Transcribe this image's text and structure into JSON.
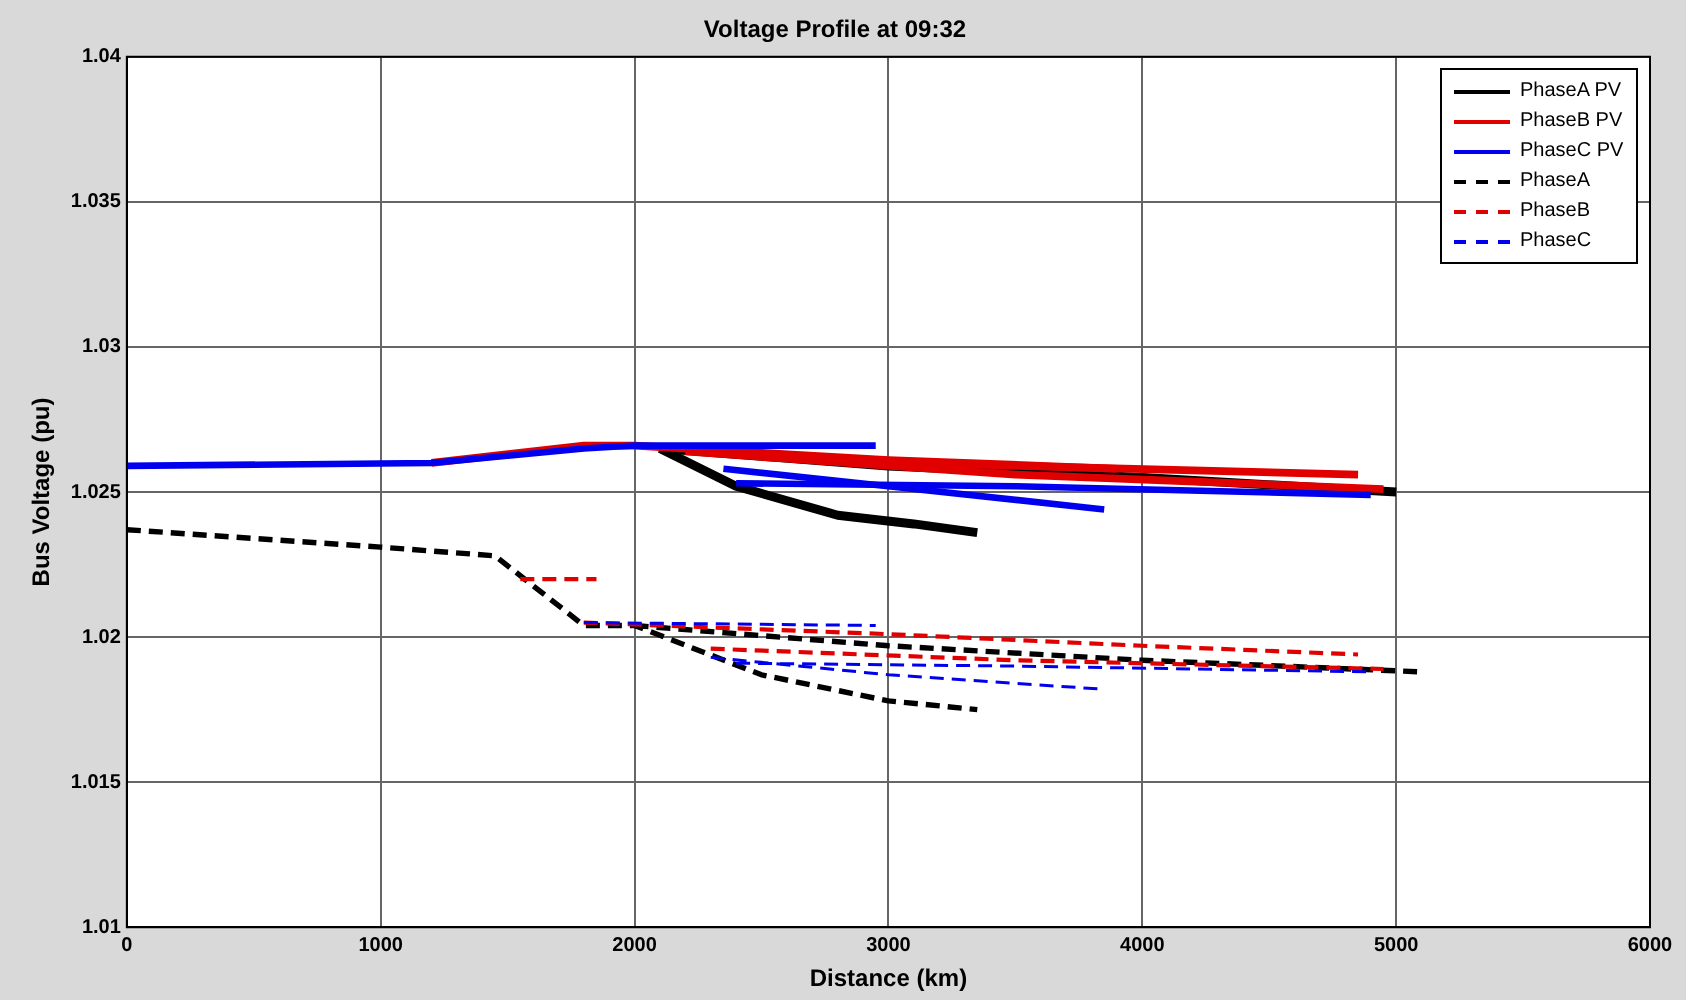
{
  "chart_data": {
    "type": "line",
    "title": "Voltage Profile at 09:32",
    "xlabel": "Distance (km)",
    "ylabel": "Bus Voltage (pu)",
    "xlim": [
      0,
      6000
    ],
    "xticks": [
      0,
      1000,
      2000,
      3000,
      4000,
      5000,
      6000
    ],
    "ylim": [
      1.01,
      1.04
    ],
    "yticks": [
      1.01,
      1.015,
      1.02,
      1.025,
      1.03,
      1.035,
      1.04
    ],
    "grid": true,
    "legend": "top right",
    "marker": "none",
    "series": [
      {
        "name": "PhaseA PV",
        "color": "#000000",
        "line_style": "solid",
        "x": [
          2100,
          2400,
          2800,
          3100,
          3350,
          null,
          2100,
          3000,
          4000,
          5000
        ],
        "values": [
          1.0265,
          1.0252,
          1.0242,
          1.0239,
          1.0236,
          null,
          1.0265,
          1.0259,
          1.0255,
          1.025
        ]
      },
      {
        "name": "PhaseB PV",
        "color": "#e00000",
        "line_style": "solid",
        "x": [
          1200,
          1800,
          2000,
          3000,
          3900,
          null,
          2500,
          3500,
          4850,
          null,
          2200,
          3500,
          4950
        ],
        "values": [
          1.026,
          1.0266,
          1.0266,
          1.0261,
          1.0258,
          null,
          1.0262,
          1.0259,
          1.0256,
          null,
          1.0264,
          1.0256,
          1.0251
        ]
      },
      {
        "name": "PhaseC PV",
        "color": "#0000ee",
        "line_style": "solid",
        "x": [
          0,
          1200,
          1800,
          2000,
          2950,
          null,
          2350,
          3000,
          3850,
          null,
          2400,
          3500,
          4900
        ],
        "values": [
          1.0259,
          1.026,
          1.0265,
          1.0266,
          1.0266,
          null,
          1.0258,
          1.0252,
          1.0244,
          null,
          1.0253,
          1.0252,
          1.0249
        ]
      },
      {
        "name": "PhaseA",
        "color": "#000000",
        "line_style": "dashed",
        "x": [
          0,
          1000,
          1450,
          1800,
          2000,
          2500,
          3000,
          3350,
          null,
          2000,
          3000,
          4000,
          5100
        ],
        "values": [
          1.0237,
          1.0231,
          1.0228,
          1.0204,
          1.0204,
          1.0187,
          1.0178,
          1.0175,
          null,
          1.0204,
          1.0197,
          1.0192,
          1.0188
        ]
      },
      {
        "name": "PhaseB",
        "color": "#e00000",
        "line_style": "dashed",
        "x": [
          1550,
          1850,
          null,
          1800,
          3000,
          4000,
          4850,
          null,
          2300,
          3500,
          4950
        ],
        "values": [
          1.022,
          1.022,
          null,
          1.0205,
          1.0201,
          1.0197,
          1.0194,
          null,
          1.0196,
          1.0192,
          1.0189
        ]
      },
      {
        "name": "PhaseC",
        "color": "#0000ee",
        "line_style": "dashed",
        "x": [
          1800,
          2950,
          null,
          2300,
          3000,
          3850,
          null,
          2400,
          3500,
          4900
        ],
        "values": [
          1.0205,
          1.0204,
          null,
          1.0193,
          1.0187,
          1.0182,
          null,
          1.0191,
          1.019,
          1.0188
        ]
      }
    ]
  }
}
